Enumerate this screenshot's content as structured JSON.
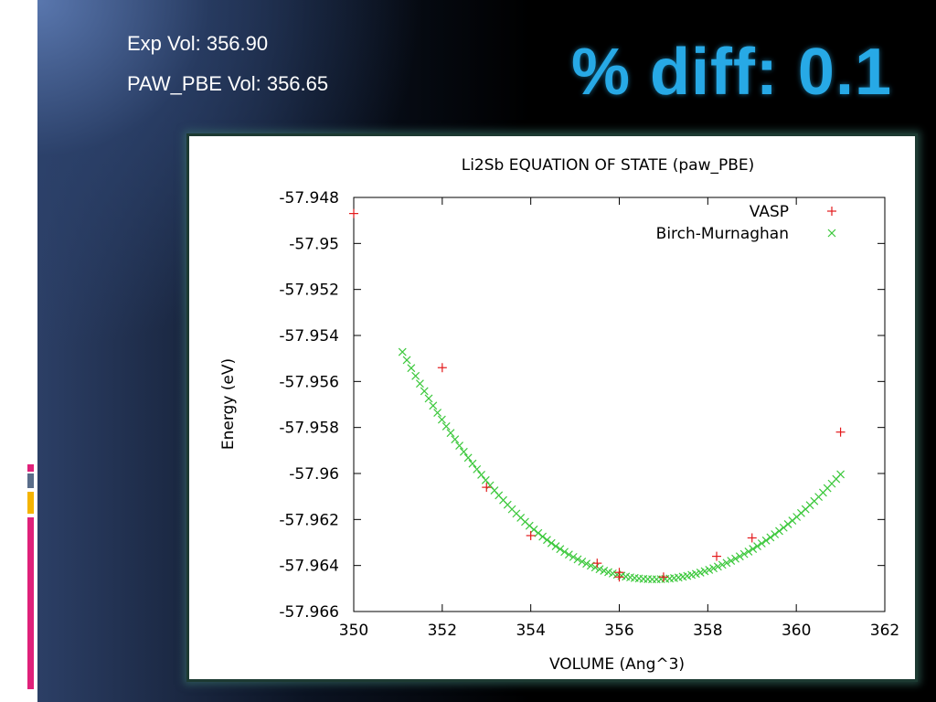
{
  "slide": {
    "exp_vol": "Exp Vol: 356.90",
    "paw_vol": "PAW_PBE Vol: 356.65",
    "headline": "% diff: 0.1",
    "accent_colors": [
      "#e0217a",
      "#5a6d8a",
      "#f5b400",
      "#e0217a"
    ]
  },
  "chart_data": {
    "type": "scatter",
    "title": "Li2Sb EQUATION OF STATE (paw_PBE)",
    "xlabel": "VOLUME (Ang^3)",
    "ylabel": "Energy (eV)",
    "xlim": [
      350,
      362
    ],
    "ylim": [
      -57.966,
      -57.948
    ],
    "xticks": [
      "350",
      "352",
      "354",
      "356",
      "358",
      "360",
      "362"
    ],
    "yticks": [
      "-57.948",
      "-57.95",
      "-57.952",
      "-57.954",
      "-57.956",
      "-57.958",
      "-57.96",
      "-57.962",
      "-57.964",
      "-57.966"
    ],
    "grid": false,
    "legend_position": "top-right",
    "series": [
      {
        "name": "VASP",
        "marker": "+",
        "color": "#e31a1c",
        "points": [
          [
            350.0,
            -57.9487
          ],
          [
            352.0,
            -57.9554
          ],
          [
            353.0,
            -57.9606
          ],
          [
            354.0,
            -57.9627
          ],
          [
            355.5,
            -57.9639
          ],
          [
            356.0,
            -57.9645
          ],
          [
            356.0,
            -57.9643
          ],
          [
            357.0,
            -57.9645
          ],
          [
            358.2,
            -57.9636
          ],
          [
            359.0,
            -57.9628
          ],
          [
            361.0,
            -57.9582
          ]
        ]
      },
      {
        "name": "Birch-Murnaghan",
        "marker": "x",
        "color": "#3cc83c",
        "fit": {
          "v0": 356.8,
          "e0": -57.9646,
          "a": 0.000278,
          "b": -4.6e-06,
          "xmin": 351.1,
          "xmax": 361.0,
          "n": 100
        }
      }
    ]
  }
}
